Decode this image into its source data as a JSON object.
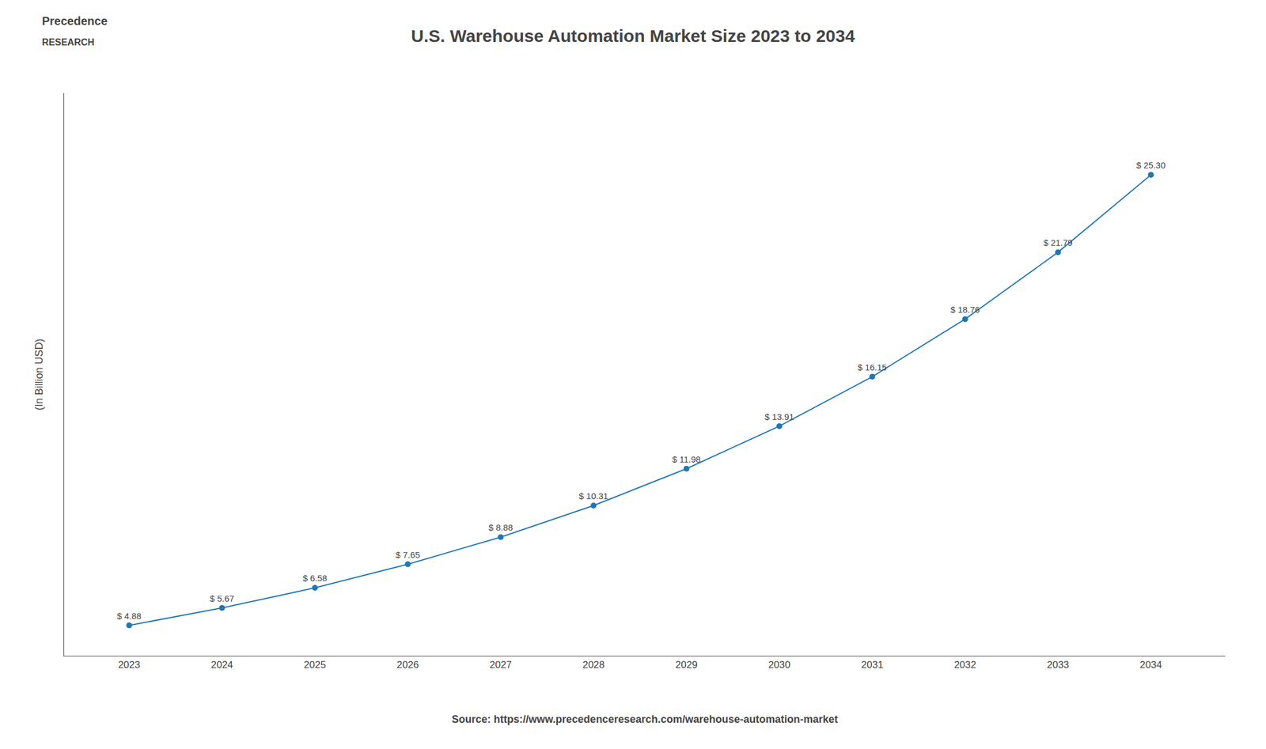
{
  "chart_data": {
    "type": "line",
    "title": "U.S. Warehouse Automation Market Size 2023 to 2034",
    "ylabel": "(In Billion USD)",
    "annotations": [
      "Precedence",
      "RESEARCH",
      "Source: https://www.precedenceresearch.com/warehouse-automation-market"
    ],
    "x": [
      2023,
      2024,
      2025,
      2026,
      2027,
      2028,
      2029,
      2030,
      2031,
      2032,
      2033,
      2034
    ],
    "values": [
      4.88,
      5.67,
      6.58,
      7.65,
      8.88,
      10.31,
      11.98,
      13.91,
      16.15,
      18.76,
      21.79,
      25.3
    ],
    "value_labels": [
      "$ 4.88",
      "$ 5.67",
      "$ 6.58",
      "$ 7.65",
      "$ 8.88",
      "$ 10.31",
      "$ 11.98",
      "$ 13.91",
      "$ 16.15",
      "$ 18.76",
      "$ 21.79",
      "$ 25.30"
    ],
    "data_labels": true,
    "marker": "circle",
    "xlim": [
      2022.3,
      2034.8
    ],
    "xticks": [
      2023,
      2024,
      2025,
      2026,
      2027,
      2028,
      2029,
      2030,
      2031,
      2032,
      2033,
      2034
    ],
    "ylim": [
      3.5,
      29
    ],
    "yticks": [],
    "tick_labels": "x",
    "grid": false
  }
}
